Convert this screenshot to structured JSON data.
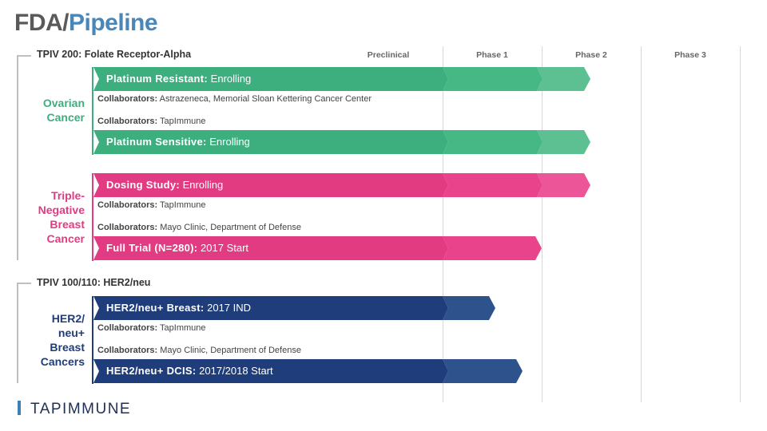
{
  "title": {
    "part1": "FDA/",
    "part2": "Pipeline"
  },
  "phases": [
    "Preclinical",
    "Phase 1",
    "Phase 2",
    "Phase 3"
  ],
  "programs": [
    {
      "label": "TPIV 200: Folate Receptor-Alpha"
    },
    {
      "label": "TPIV 100/110: HER2/neu"
    }
  ],
  "categories": {
    "ovarian": [
      "Ovarian",
      "Cancer"
    ],
    "tnbc": [
      "Triple-",
      "Negative",
      "Breast",
      "Cancer"
    ],
    "her2": [
      "HER2/",
      "neu+",
      "Breast",
      "Cancers"
    ]
  },
  "colors": {
    "ovarian": "#3dae7e",
    "tnbc": "#e23b82",
    "her2": "#1f3d7a"
  },
  "bars": [
    {
      "bold": "Platinum Resistant:",
      "rest": " Enrolling",
      "progress": "Phase 2",
      "color": "ovarian"
    },
    {
      "bold": "Platinum Sensitive:",
      "rest": " Enrolling",
      "progress": "Phase 2",
      "color": "ovarian"
    },
    {
      "bold": "Dosing Study:",
      "rest": " Enrolling",
      "progress": "Phase 2",
      "color": "tnbc"
    },
    {
      "bold": "Full Trial (N=280):",
      "rest": " 2017 Start",
      "progress": "Phase 1",
      "color": "tnbc"
    },
    {
      "bold": "HER2/neu+ Breast:",
      "rest": " 2017 IND",
      "progress": "Phase 1 (partial)",
      "color": "her2"
    },
    {
      "bold": "HER2/neu+ DCIS:",
      "rest": " 2017/2018 Start",
      "progress": "Phase 1 (partial)",
      "color": "her2"
    }
  ],
  "collaborators": [
    {
      "label": "Collaborators:",
      "text": " Astrazeneca, Memorial Sloan Kettering Cancer Center"
    },
    {
      "label": "Collaborators:",
      "text": " TapImmune"
    },
    {
      "label": "Collaborators:",
      "text": " TapImmune"
    },
    {
      "label": "Collaborators:",
      "text": " Mayo Clinic, Department of Defense"
    },
    {
      "label": "Collaborators:",
      "text": " TapImmune"
    },
    {
      "label": "Collaborators:",
      "text": " Mayo Clinic, Department of Defense"
    }
  ],
  "logo": "TAPIMMUNE"
}
